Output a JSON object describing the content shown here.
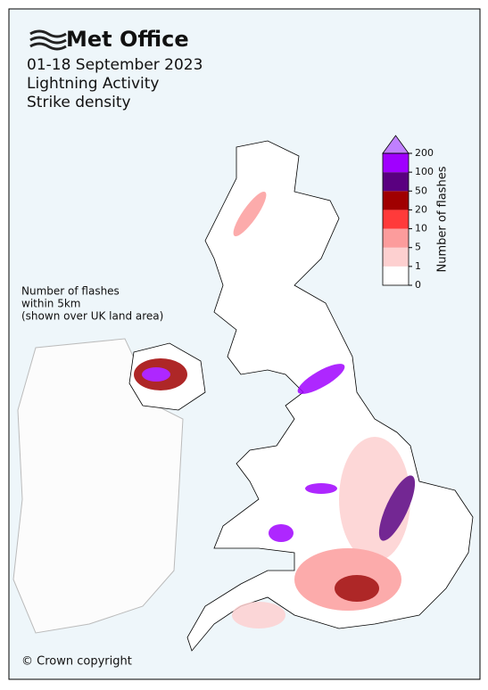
{
  "header": {
    "logo": "Met Office",
    "title_lines": [
      "01-18 September 2023",
      "Lightning Activity",
      "Strike density"
    ]
  },
  "legend": {
    "title": "Number of flashes",
    "ticks": [
      0,
      1,
      5,
      10,
      20,
      50,
      100,
      200
    ],
    "colors": [
      "#ffffff",
      "#fdd0d0",
      "#fc9c9c",
      "#ff3a3a",
      "#a00000",
      "#5a0080",
      "#a000ff"
    ],
    "extend_color": "#c080ff"
  },
  "note_lines": [
    "Number of flashes",
    "within 5km",
    "(shown over UK land area)"
  ],
  "copyright": "© Crown copyright"
}
